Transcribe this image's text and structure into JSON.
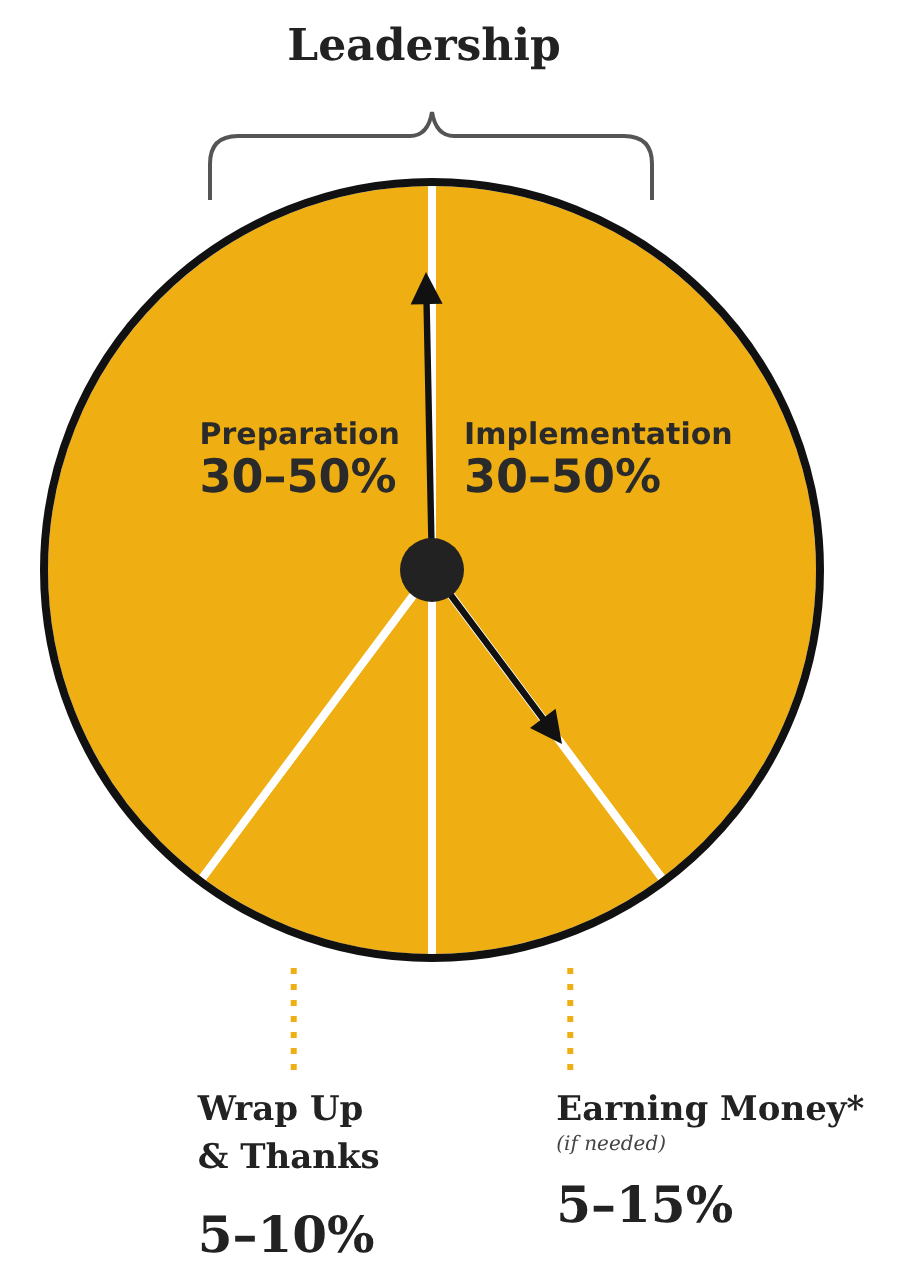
{
  "chart_data": {
    "type": "pie",
    "title": "Leadership",
    "categories": [
      "Implementation",
      "Earning Money*",
      "Wrap Up\n& Thanks",
      "Preparation"
    ],
    "values": [
      39.8,
      10.2,
      10.2,
      39.8
    ],
    "colors": [
      "#efaf13",
      "#efaf13",
      "#efaf13",
      "#efaf13"
    ],
    "annotations": [
      {
        "text": "30–50%",
        "x": "Implementation"
      },
      {
        "text": "5–15%",
        "x": "Earning Money*"
      },
      {
        "text": "5–10%",
        "x": "Wrap Up\n& Thanks"
      },
      {
        "text": "30–50%",
        "x": "Preparation"
      },
      "(if needed)"
    ],
    "needle": "Preparation",
    "legend": false
  }
}
